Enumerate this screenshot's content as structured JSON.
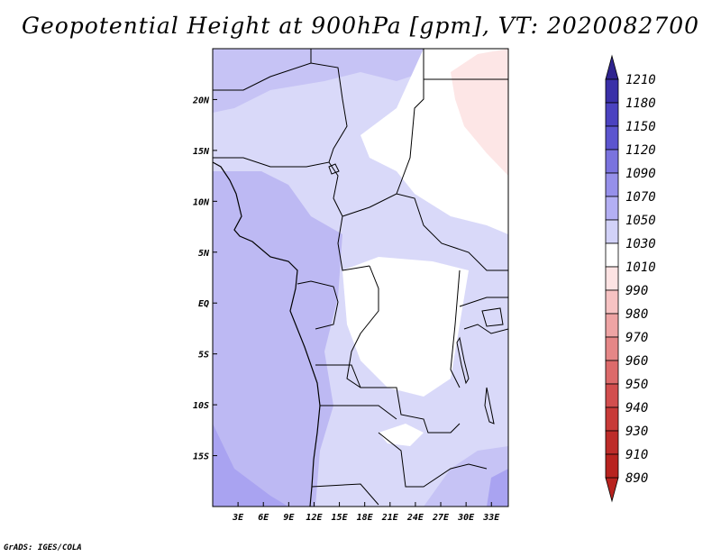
{
  "title": "Geopotential Height at 900hPa [gpm], VT: 2020082700",
  "footer": "GrADS: IGES/COLA",
  "map": {
    "lon_range": [
      0,
      35
    ],
    "lat_range": [
      -20,
      25
    ],
    "x_ticks": [
      {
        "lon": 3,
        "label": "3E"
      },
      {
        "lon": 6,
        "label": "6E"
      },
      {
        "lon": 9,
        "label": "9E"
      },
      {
        "lon": 12,
        "label": "12E"
      },
      {
        "lon": 15,
        "label": "15E"
      },
      {
        "lon": 18,
        "label": "18E"
      },
      {
        "lon": 21,
        "label": "21E"
      },
      {
        "lon": 24,
        "label": "24E"
      },
      {
        "lon": 27,
        "label": "27E"
      },
      {
        "lon": 30,
        "label": "30E"
      },
      {
        "lon": 33,
        "label": "33E"
      }
    ],
    "y_ticks": [
      {
        "lat": 20,
        "label": "20N"
      },
      {
        "lat": 15,
        "label": "15N"
      },
      {
        "lat": 10,
        "label": "10N"
      },
      {
        "lat": 5,
        "label": "5N"
      },
      {
        "lat": 0,
        "label": "EQ"
      },
      {
        "lat": -5,
        "label": "5S"
      },
      {
        "lat": -10,
        "label": "10S"
      },
      {
        "lat": -15,
        "label": "15S"
      }
    ]
  },
  "colorbar": {
    "top_arrow_color": "#2f248f",
    "bottom_arrow_color": "#b8231f",
    "levels": [
      {
        "label": "1210",
        "color": "#2f248f"
      },
      {
        "label": "1180",
        "color": "#3a30a8"
      },
      {
        "label": "1150",
        "color": "#4b42c0"
      },
      {
        "label": "1120",
        "color": "#5c55cf"
      },
      {
        "label": "1090",
        "color": "#7a73de"
      },
      {
        "label": "1070",
        "color": "#9690ea"
      },
      {
        "label": "1050",
        "color": "#b3aff3"
      },
      {
        "label": "1030",
        "color": "#d2d2f8"
      },
      {
        "label": "1010",
        "color": "#ffffff"
      },
      {
        "label": "990",
        "color": "#fde3e3"
      },
      {
        "label": "980",
        "color": "#f7c3c3"
      },
      {
        "label": "970",
        "color": "#eea4a4"
      },
      {
        "label": "960",
        "color": "#e58787"
      },
      {
        "label": "950",
        "color": "#dc6a6a"
      },
      {
        "label": "940",
        "color": "#d24e4e"
      },
      {
        "label": "930",
        "color": "#c83a38"
      },
      {
        "label": "910",
        "color": "#bd2c29"
      },
      {
        "label": "890",
        "color": "#b8231f"
      }
    ]
  }
}
